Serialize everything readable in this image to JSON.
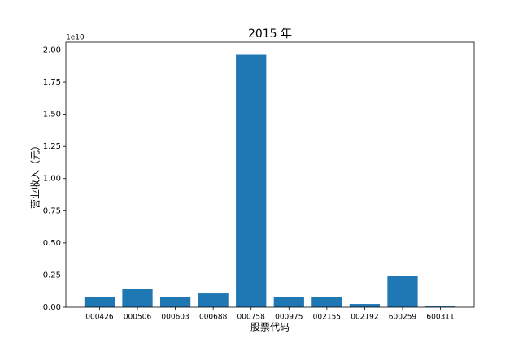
{
  "chart_data": {
    "type": "bar",
    "title": "2015 年",
    "x_label": "股票代码",
    "y_label": "营业收入（元）",
    "y_offset_label": "1e10",
    "categories": [
      "000426",
      "000506",
      "000603",
      "000688",
      "000758",
      "000975",
      "002155",
      "002192",
      "600259",
      "600311"
    ],
    "values": [
      0.082,
      0.139,
      0.082,
      0.107,
      1.962,
      0.076,
      0.076,
      0.025,
      0.24,
      0.006
    ],
    "color": "#1f77b4",
    "ylim": [
      0,
      2.06
    ],
    "yticks": [
      {
        "value": 0,
        "label": "0.00"
      },
      0.25,
      {
        "value": 0.5,
        "label": "0.50"
      },
      0.75,
      {
        "value": 1,
        "label": "1.00"
      },
      1.25,
      {
        "value": 1.5,
        "label": "1.50"
      },
      1.75,
      {
        "value": 2,
        "label": "2.00"
      }
    ],
    "grid": false
  }
}
